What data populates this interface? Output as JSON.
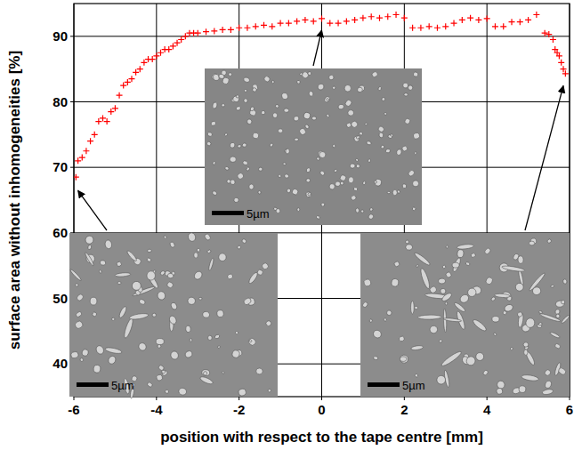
{
  "chart_data": {
    "type": "scatter",
    "x_label": "position with respect to the tape centre [mm]",
    "y_label": "surface area without inhomogeneities [%]",
    "x": [
      -5.95,
      -5.9,
      -5.8,
      -5.7,
      -5.6,
      -5.5,
      -5.4,
      -5.3,
      -5.2,
      -5.1,
      -5.0,
      -4.9,
      -4.8,
      -4.7,
      -4.6,
      -4.5,
      -4.4,
      -4.3,
      -4.2,
      -4.1,
      -4.0,
      -3.9,
      -3.8,
      -3.7,
      -3.6,
      -3.5,
      -3.4,
      -3.3,
      -3.2,
      -3.1,
      -3.0,
      -2.8,
      -2.6,
      -2.4,
      -2.2,
      -2.0,
      -1.8,
      -1.6,
      -1.4,
      -1.2,
      -1.0,
      -0.8,
      -0.6,
      -0.4,
      -0.2,
      0.0,
      0.2,
      0.4,
      0.6,
      0.8,
      1.0,
      1.2,
      1.4,
      1.6,
      1.8,
      2.0,
      2.2,
      2.4,
      2.6,
      2.8,
      3.0,
      3.2,
      3.4,
      3.6,
      3.8,
      4.0,
      4.2,
      4.4,
      4.6,
      4.8,
      5.0,
      5.2,
      5.4,
      5.5,
      5.6,
      5.65,
      5.7,
      5.75,
      5.8,
      5.85,
      5.9
    ],
    "values": [
      68.5,
      71,
      71.5,
      72.5,
      74,
      75,
      77,
      77.5,
      77,
      78.5,
      79,
      81,
      82.5,
      83,
      83.5,
      84.5,
      85,
      86,
      86.5,
      86.5,
      87,
      87.5,
      88,
      88,
      88.5,
      89,
      89.5,
      90,
      90.5,
      90.5,
      90.5,
      90.7,
      90.8,
      91,
      91,
      91.3,
      91.3,
      91.5,
      91.7,
      91.5,
      92,
      92,
      92.3,
      92.5,
      92.3,
      92.7,
      92,
      92,
      92.3,
      92.5,
      92.8,
      93,
      92.8,
      93,
      93.3,
      92.8,
      91.3,
      91.3,
      91.5,
      91.3,
      91.5,
      92,
      92.5,
      92.8,
      92.5,
      92.7,
      91.5,
      91.5,
      92.2,
      92.2,
      92.5,
      93.3,
      90.5,
      90.3,
      89.5,
      88,
      87.5,
      87,
      86,
      85,
      84.3
    ],
    "color": "#ff0000",
    "marker": "plus",
    "xlim": [
      -6,
      6
    ],
    "xticks": [
      -6,
      -4,
      -2,
      0,
      2,
      4,
      6
    ],
    "ylim": [
      35,
      95
    ],
    "yticks": [
      40,
      50,
      60,
      70,
      80,
      90
    ],
    "grid": true,
    "annotations": [
      {
        "text": "5µm",
        "x": -5.9,
        "y": 67
      },
      {
        "text": "5µm",
        "x": 0,
        "y": 91.5
      },
      {
        "text": "5µm",
        "x": 5.85,
        "y": 83
      }
    ]
  }
}
